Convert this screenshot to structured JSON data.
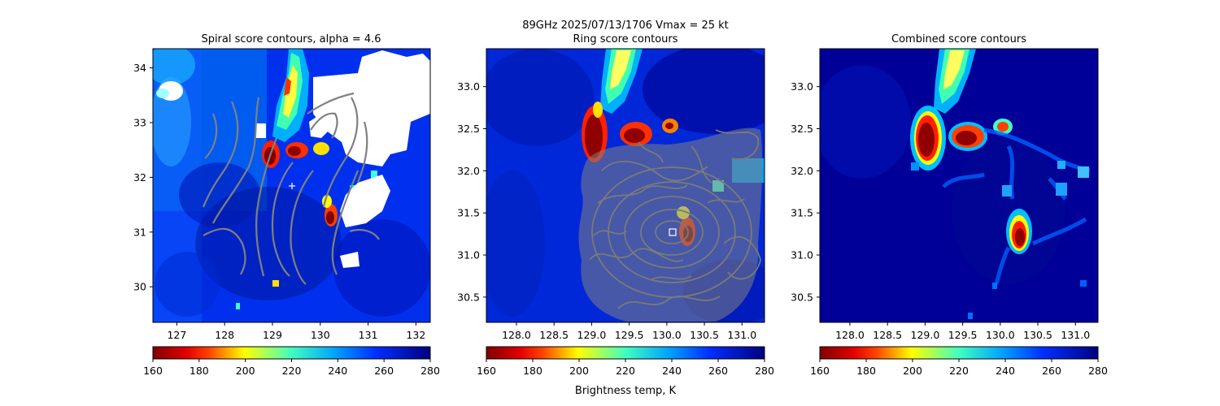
{
  "figure": {
    "suptitle": "89GHz  2025/07/13/1706    Vmax = 25 kt",
    "colorbar_label": "Brightness temp, K",
    "colormap": "jet_r",
    "colors": {
      "c160": "#800000",
      "c180": "#ff1a00",
      "c200": "#ffff00",
      "c220": "#33ffcc",
      "c240": "#00a0ff",
      "c260": "#0020ff",
      "c280": "#000080",
      "contour": "#808080",
      "missing": "#ffffff"
    }
  },
  "chart_data": [
    {
      "type": "heatmap",
      "title": "Spiral score contours, alpha =  4.6",
      "xlim": [
        126.5,
        132.3
      ],
      "ylim": [
        29.35,
        34.35
      ],
      "xticks": [
        "127",
        "128",
        "129",
        "130",
        "131",
        "132"
      ],
      "yticks": [
        "30",
        "31",
        "32",
        "33",
        "34"
      ],
      "overlay": "spiral score contours (gray)",
      "center_marker": {
        "symbol": "+",
        "lon": 129.4,
        "lat": 31.8
      },
      "colorbar": {
        "min": 160,
        "max": 280,
        "ticks": [
          "160",
          "180",
          "200",
          "220",
          "240",
          "260",
          "280"
        ]
      }
    },
    {
      "type": "heatmap",
      "title": "Ring score contours",
      "xlim": [
        127.6,
        131.3
      ],
      "ylim": [
        30.2,
        33.45
      ],
      "xticks": [
        "128.0",
        "128.5",
        "129.0",
        "129.5",
        "130.0",
        "130.5",
        "131.0"
      ],
      "yticks": [
        "30.5",
        "31.0",
        "31.5",
        "32.0",
        "32.5",
        "33.0"
      ],
      "overlay": "ring score contours (gray)",
      "center_marker": {
        "symbol": "square",
        "lon": 130.1,
        "lat": 31.27
      },
      "colorbar": {
        "min": 160,
        "max": 280,
        "ticks": [
          "160",
          "180",
          "200",
          "220",
          "240",
          "260",
          "280"
        ]
      }
    },
    {
      "type": "heatmap",
      "title": "Combined score contours",
      "xlim": [
        127.6,
        131.3
      ],
      "ylim": [
        30.2,
        33.45
      ],
      "xticks": [
        "128.0",
        "128.5",
        "129.0",
        "129.5",
        "130.0",
        "130.5",
        "131.0"
      ],
      "yticks": [
        "30.5",
        "31.0",
        "31.5",
        "32.0",
        "32.5",
        "33.0"
      ],
      "colorbar": {
        "min": 160,
        "max": 280,
        "ticks": [
          "160",
          "180",
          "200",
          "220",
          "240",
          "260",
          "280"
        ]
      }
    }
  ]
}
